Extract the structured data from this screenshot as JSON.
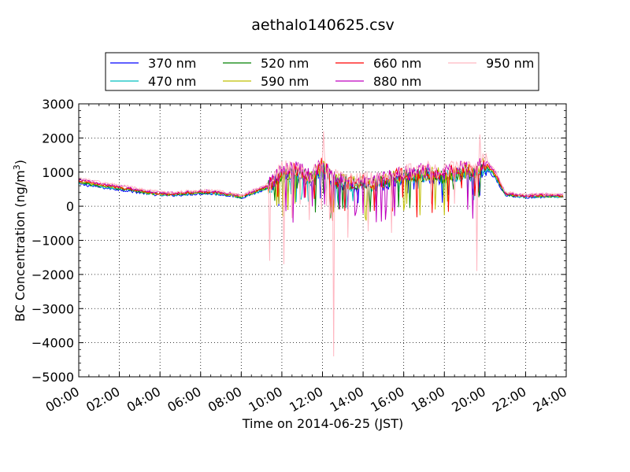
{
  "chart_data": {
    "type": "line",
    "title": "aethalo140625.csv",
    "xlabel": "Time on 2014-06-25 (JST)",
    "ylabel": {
      "prefix": "BC Concentration (ng/m",
      "superscript": "3",
      "suffix": ")"
    },
    "xlim": [
      "2014-06-25 00:00",
      "2014-06-26 00:00"
    ],
    "ylim": [
      -5000,
      3000
    ],
    "x_ticks": [
      "00:00",
      "02:00",
      "04:00",
      "06:00",
      "08:00",
      "10:00",
      "12:00",
      "14:00",
      "16:00",
      "18:00",
      "20:00",
      "22:00",
      "24:00"
    ],
    "y_ticks": [
      "3000",
      "2000",
      "1000",
      "0",
      "−1000",
      "−2000",
      "−3000",
      "−4000",
      "−5000"
    ],
    "y_tick_values": [
      3000,
      2000,
      1000,
      0,
      -1000,
      -2000,
      -3000,
      -4000,
      -5000
    ],
    "grid": true,
    "legend_position": "top",
    "x_unit": "hour of day",
    "trace_profile": {
      "x": [
        0,
        0.5,
        1,
        1.5,
        2,
        2.5,
        3,
        3.5,
        4,
        4.5,
        5,
        5.5,
        6,
        6.5,
        7,
        7.5,
        8,
        8.5,
        9,
        9.5,
        10,
        10.5,
        11,
        11.5,
        12,
        12.5,
        13,
        13.5,
        14,
        14.5,
        15,
        15.5,
        16,
        16.5,
        17,
        17.5,
        18,
        18.5,
        19,
        19.5,
        20,
        20.5,
        21,
        21.5,
        22,
        22.5,
        23,
        23.5,
        23.9
      ],
      "y": [
        700,
        650,
        600,
        560,
        520,
        480,
        430,
        390,
        350,
        340,
        360,
        380,
        400,
        390,
        370,
        330,
        270,
        380,
        480,
        600,
        950,
        1000,
        920,
        800,
        1150,
        750,
        700,
        650,
        700,
        660,
        720,
        800,
        850,
        900,
        950,
        900,
        880,
        950,
        1000,
        950,
        1200,
        900,
        350,
        310,
        290,
        290,
        300,
        300,
        280
      ]
    },
    "series": [
      {
        "name": "370 nm",
        "color": "#0000ff",
        "scale": 0.93
      },
      {
        "name": "470 nm",
        "color": "#00bfbf",
        "scale": 0.97
      },
      {
        "name": "520 nm",
        "color": "#008000",
        "scale": 1.0
      },
      {
        "name": "590 nm",
        "color": "#bfbf00",
        "scale": 1.03
      },
      {
        "name": "660 nm",
        "color": "#ff0000",
        "scale": 1.07
      },
      {
        "name": "880 nm",
        "color": "#bf00bf",
        "scale": 1.12
      },
      {
        "name": "950 nm",
        "color": "#ffb6c1",
        "scale": 1.18
      }
    ],
    "notable_points": [
      {
        "x": 9.4,
        "y": -1600,
        "series": "950 nm"
      },
      {
        "x": 10.1,
        "y": -1700,
        "series": "950 nm"
      },
      {
        "x": 12.05,
        "y": 2200,
        "series": "950 nm"
      },
      {
        "x": 12.55,
        "y": -4400,
        "series": "950 nm"
      },
      {
        "x": 19.75,
        "y": 2100,
        "series": "950 nm"
      },
      {
        "x": 19.6,
        "y": -1900,
        "series": "950 nm"
      }
    ]
  }
}
